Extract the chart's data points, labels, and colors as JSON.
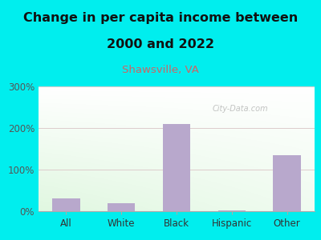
{
  "title_line1": "Change in per capita income between",
  "title_line2": "2000 and 2022",
  "subtitle": "Shawsville, VA",
  "categories": [
    "All",
    "White",
    "Black",
    "Hispanic",
    "Other"
  ],
  "values": [
    30,
    20,
    210,
    2,
    135
  ],
  "bar_color": "#b8a8cc",
  "title_fontsize": 11.5,
  "subtitle_fontsize": 9.5,
  "subtitle_color": "#cc6666",
  "title_color": "#111111",
  "background_color": "#00eeee",
  "tick_label_fontsize": 8.5,
  "ylim": [
    0,
    300
  ],
  "yticks": [
    0,
    100,
    200,
    300
  ],
  "ytick_labels": [
    "0%",
    "100%",
    "200%",
    "300%"
  ],
  "grid_color": "#ddcccc",
  "watermark": "City-Data.com"
}
